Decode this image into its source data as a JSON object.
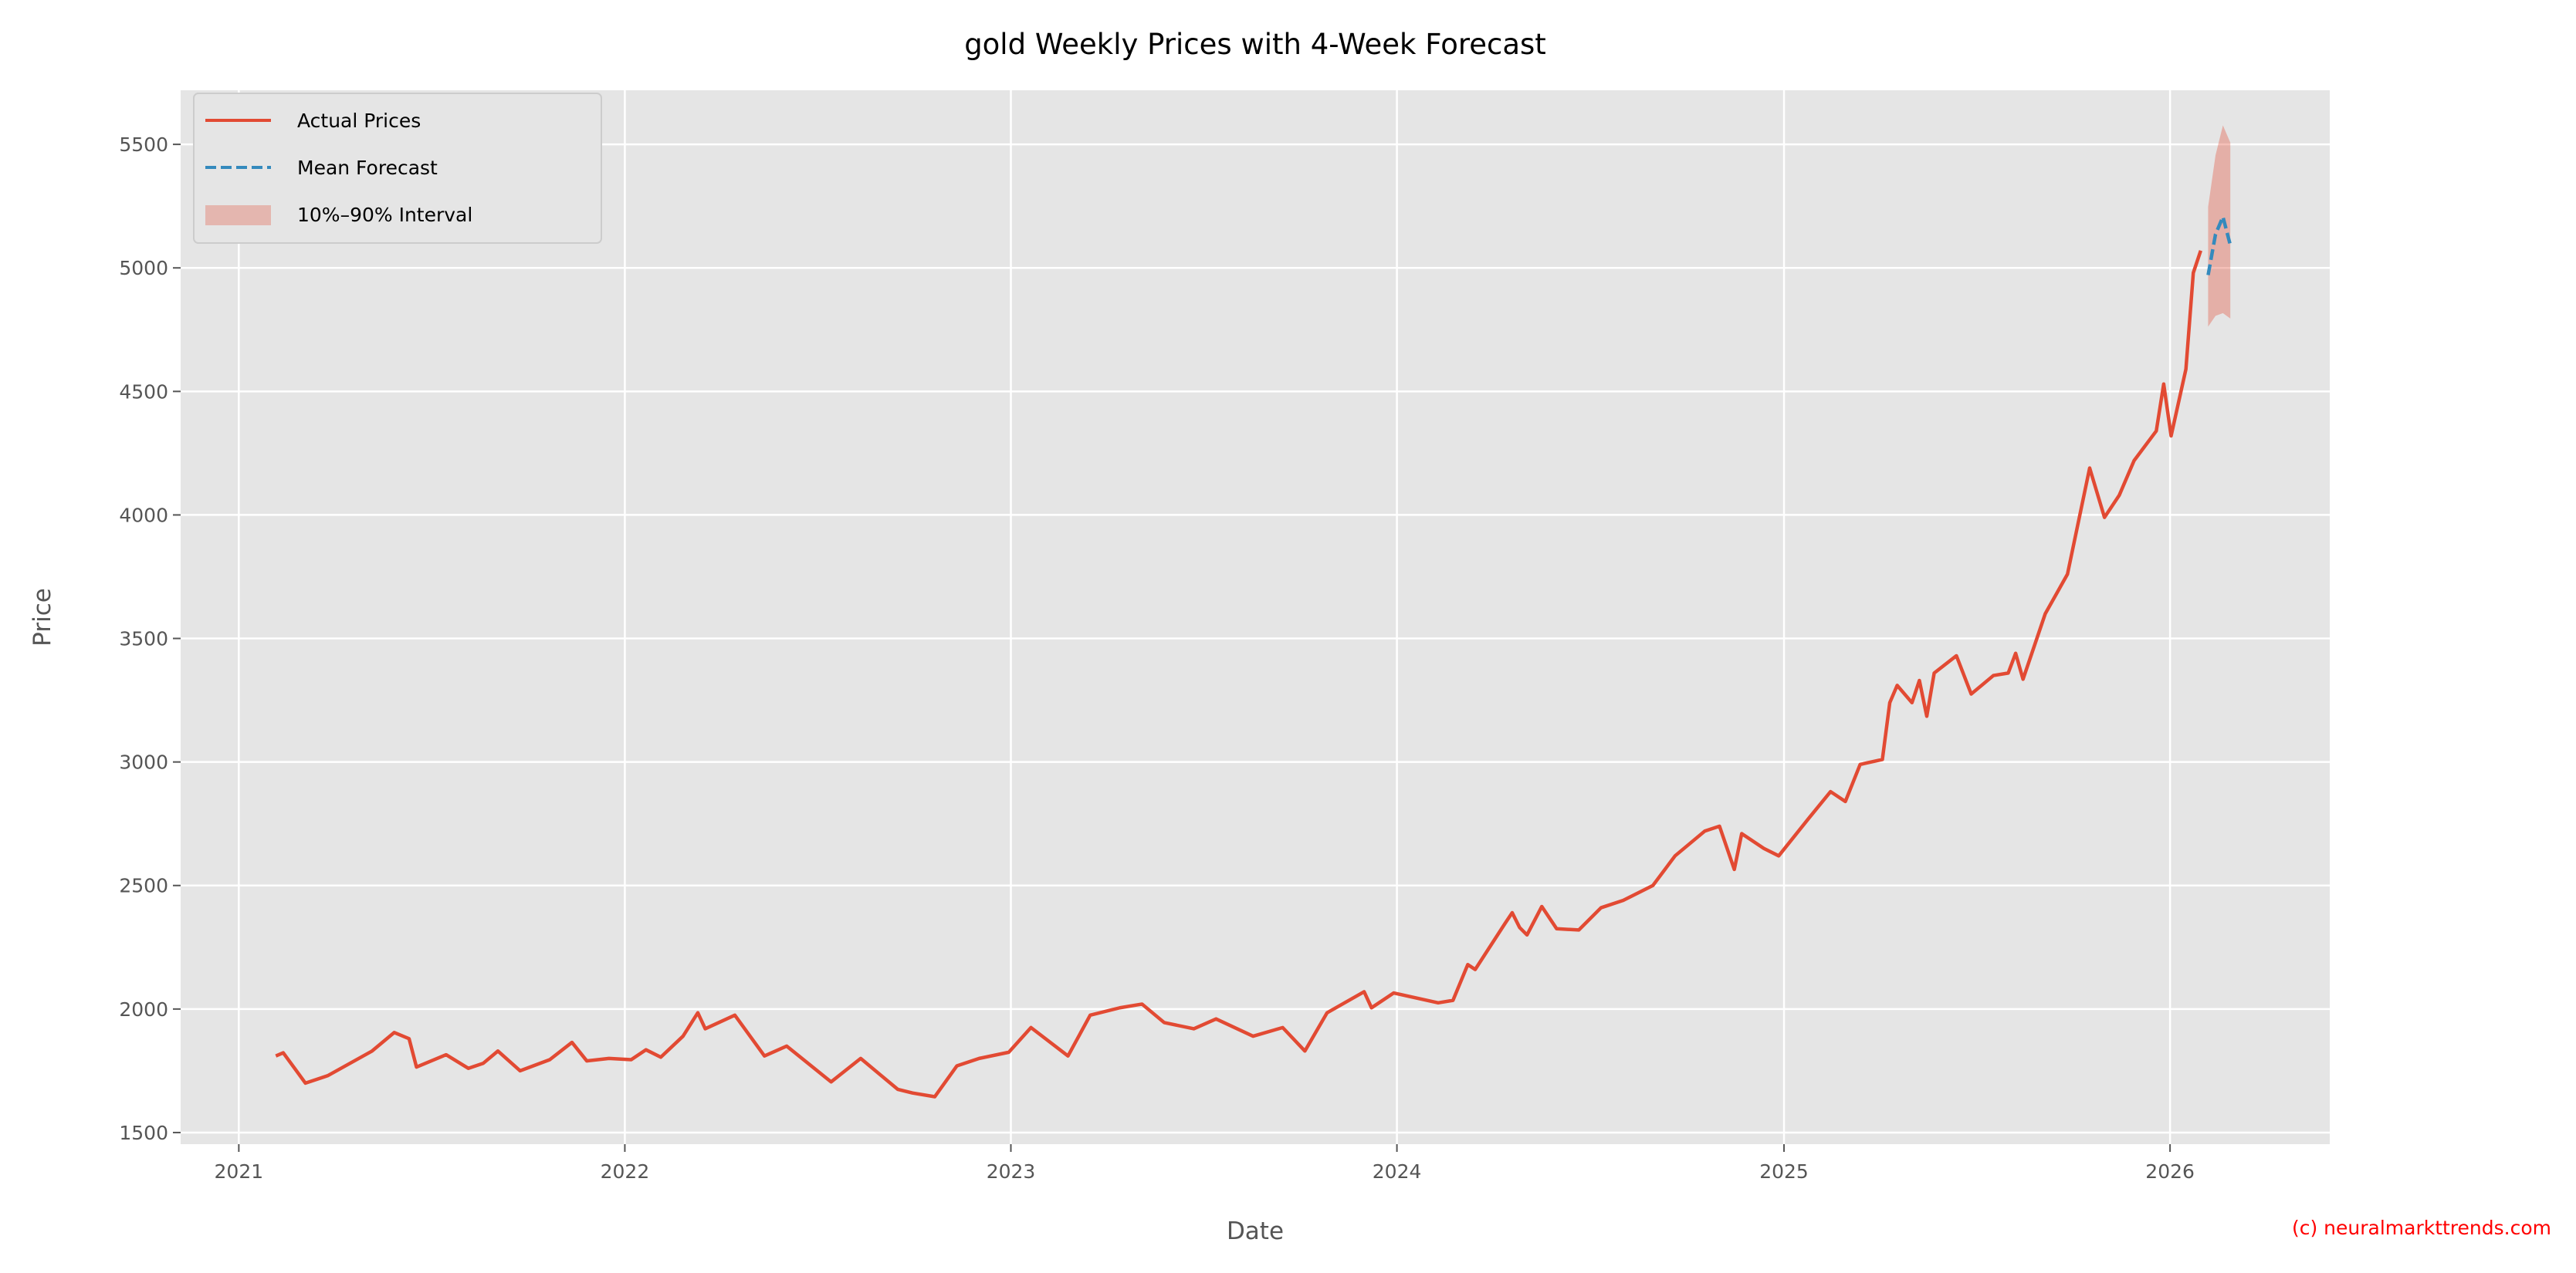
{
  "chart_data": {
    "type": "line",
    "title": "gold Weekly Prices with 4-Week Forecast",
    "xlabel": "Date",
    "ylabel": "Price",
    "xlim": [
      "2020-11-07",
      "2026-06-01"
    ],
    "ylim": [
      1453,
      5719
    ],
    "xticks": [
      "2021",
      "2022",
      "2023",
      "2024",
      "2025",
      "2026"
    ],
    "yticks": [
      1500,
      2000,
      2500,
      3000,
      3500,
      4000,
      4500,
      5000,
      5500
    ],
    "grid": true,
    "legend_position": "top-left",
    "colors": {
      "actual": "#E24A33",
      "forecast": "#348ABD",
      "interval": "#E24A33",
      "background": "#E5E5E5"
    },
    "series": [
      {
        "name": "Actual Prices",
        "style": "solid",
        "x": [
          "2021-02-05",
          "2021-02-12",
          "2021-03-05",
          "2021-03-26",
          "2021-04-16",
          "2021-05-07",
          "2021-05-28",
          "2021-06-11",
          "2021-06-18",
          "2021-07-16",
          "2021-08-06",
          "2021-08-20",
          "2021-09-03",
          "2021-09-24",
          "2021-10-22",
          "2021-11-12",
          "2021-11-26",
          "2021-12-17",
          "2022-01-07",
          "2022-01-21",
          "2022-02-04",
          "2022-02-25",
          "2022-03-11",
          "2022-03-18",
          "2022-04-15",
          "2022-05-13",
          "2022-06-03",
          "2022-07-15",
          "2022-08-12",
          "2022-09-16",
          "2022-09-30",
          "2022-10-21",
          "2022-11-11",
          "2022-12-02",
          "2022-12-30",
          "2023-01-20",
          "2023-02-24",
          "2023-03-17",
          "2023-04-14",
          "2023-05-05",
          "2023-05-26",
          "2023-06-23",
          "2023-07-14",
          "2023-08-18",
          "2023-09-15",
          "2023-10-06",
          "2023-10-27",
          "2023-12-01",
          "2023-12-08",
          "2023-12-29",
          "2024-02-09",
          "2024-02-23",
          "2024-03-08",
          "2024-03-15",
          "2024-04-12",
          "2024-04-19",
          "2024-04-26",
          "2024-05-03",
          "2024-05-17",
          "2024-05-31",
          "2024-06-21",
          "2024-07-12",
          "2024-08-02",
          "2024-08-30",
          "2024-09-20",
          "2024-10-18",
          "2024-11-01",
          "2024-11-15",
          "2024-11-22",
          "2024-12-13",
          "2024-12-27",
          "2025-01-24",
          "2025-02-14",
          "2025-02-28",
          "2025-03-14",
          "2025-04-04",
          "2025-04-11",
          "2025-04-18",
          "2025-05-02",
          "2025-05-09",
          "2025-05-16",
          "2025-05-23",
          "2025-06-13",
          "2025-06-27",
          "2025-07-18",
          "2025-08-01",
          "2025-08-08",
          "2025-08-15",
          "2025-09-05",
          "2025-09-26",
          "2025-10-17",
          "2025-10-31",
          "2025-11-14",
          "2025-11-28",
          "2025-12-19",
          "2025-12-26",
          "2026-01-02",
          "2026-01-16",
          "2026-01-23",
          "2026-01-30"
        ],
        "y": [
          1810,
          1823,
          1700,
          1730,
          1780,
          1830,
          1905,
          1880,
          1765,
          1815,
          1760,
          1780,
          1830,
          1750,
          1795,
          1865,
          1790,
          1800,
          1795,
          1835,
          1805,
          1890,
          1985,
          1920,
          1975,
          1810,
          1850,
          1705,
          1800,
          1675,
          1660,
          1645,
          1770,
          1800,
          1825,
          1925,
          1810,
          1975,
          2005,
          2020,
          1945,
          1920,
          1960,
          1890,
          1925,
          1830,
          1985,
          2070,
          2005,
          2065,
          2025,
          2035,
          2180,
          2160,
          2345,
          2390,
          2330,
          2300,
          2415,
          2325,
          2320,
          2410,
          2440,
          2500,
          2620,
          2720,
          2740,
          2565,
          2710,
          2650,
          2620,
          2770,
          2880,
          2840,
          2990,
          3010,
          3240,
          3310,
          3240,
          3330,
          3185,
          3360,
          3430,
          3275,
          3350,
          3360,
          3440,
          3335,
          3600,
          3760,
          4190,
          3990,
          4080,
          4220,
          4340,
          4530,
          4320,
          4590,
          4980,
          5070
        ]
      },
      {
        "name": "Mean Forecast",
        "style": "dashed",
        "x": [
          "2026-02-06",
          "2026-02-13",
          "2026-02-20",
          "2026-02-27"
        ],
        "y": [
          4971,
          5136,
          5207,
          5092
        ]
      }
    ],
    "interval": {
      "name": "10%–90% Interval",
      "x": [
        "2026-02-06",
        "2026-02-13",
        "2026-02-20",
        "2026-02-27"
      ],
      "lower": [
        4762,
        4806,
        4817,
        4795
      ],
      "upper": [
        5247,
        5456,
        5577,
        5507
      ]
    }
  },
  "watermark": "(c) neuralmarkttrends.com"
}
